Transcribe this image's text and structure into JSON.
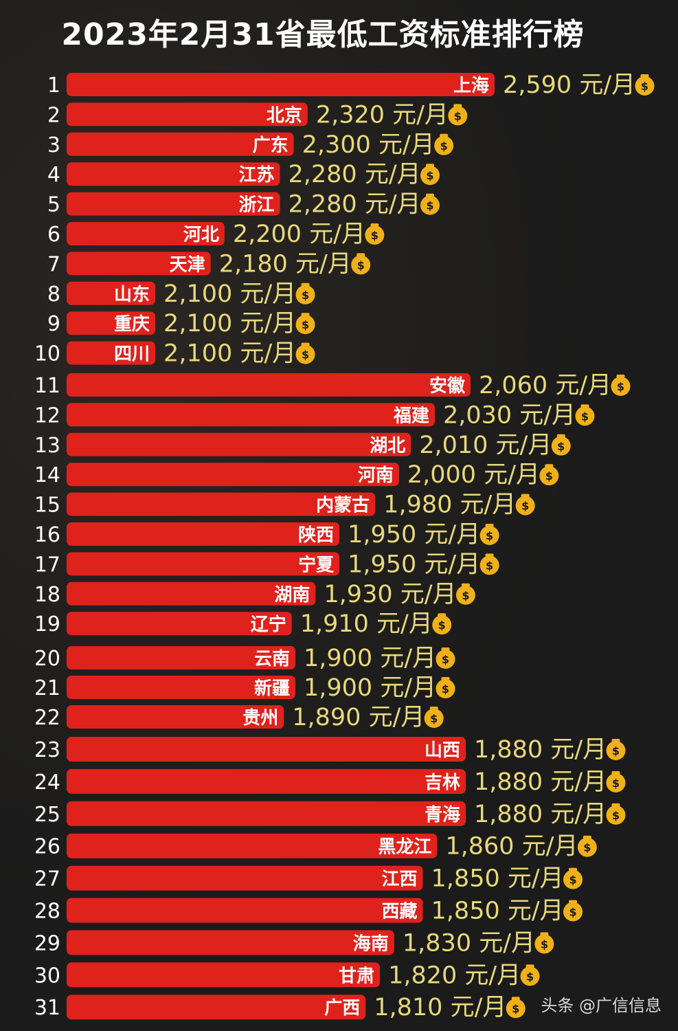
{
  "chart_data": {
    "type": "bar",
    "title": "2023年2月31省最低工资标准排行榜",
    "unit": "元/月",
    "icon": "money-bag-icon",
    "colors": {
      "bar": "#e0221c",
      "value_text": "#e8d87a",
      "rank_text": "#ffffff",
      "coin": "#f0b019"
    },
    "rows": [
      {
        "rank": "1",
        "province": "上海",
        "value": 2590,
        "label": "2,590"
      },
      {
        "rank": "2",
        "province": "北京",
        "value": 2320,
        "label": "2,320"
      },
      {
        "rank": "3",
        "province": "广东",
        "value": 2300,
        "label": "2,300"
      },
      {
        "rank": "4",
        "province": "江苏",
        "value": 2280,
        "label": "2,280"
      },
      {
        "rank": "5",
        "province": "浙江",
        "value": 2280,
        "label": "2,280"
      },
      {
        "rank": "6",
        "province": "河北",
        "value": 2200,
        "label": "2,200"
      },
      {
        "rank": "7",
        "province": "天津",
        "value": 2180,
        "label": "2,180"
      },
      {
        "rank": "8",
        "province": "山东",
        "value": 2100,
        "label": "2,100"
      },
      {
        "rank": "9",
        "province": "重庆",
        "value": 2100,
        "label": "2,100"
      },
      {
        "rank": "10",
        "province": "四川",
        "value": 2100,
        "label": "2,100"
      },
      {
        "rank": "11",
        "province": "安徽",
        "value": 2060,
        "label": "2,060"
      },
      {
        "rank": "12",
        "province": "福建",
        "value": 2030,
        "label": "2,030"
      },
      {
        "rank": "13",
        "province": "湖北",
        "value": 2010,
        "label": "2,010"
      },
      {
        "rank": "14",
        "province": "河南",
        "value": 2000,
        "label": "2,000"
      },
      {
        "rank": "15",
        "province": "内蒙古",
        "value": 1980,
        "label": "1,980"
      },
      {
        "rank": "16",
        "province": "陕西",
        "value": 1950,
        "label": "1,950"
      },
      {
        "rank": "17",
        "province": "宁夏",
        "value": 1950,
        "label": "1,950"
      },
      {
        "rank": "18",
        "province": "湖南",
        "value": 1930,
        "label": "1,930"
      },
      {
        "rank": "19",
        "province": "辽宁",
        "value": 1910,
        "label": "1,910"
      },
      {
        "rank": "20",
        "province": "云南",
        "value": 1900,
        "label": "1,900"
      },
      {
        "rank": "21",
        "province": "新疆",
        "value": 1900,
        "label": "1,900"
      },
      {
        "rank": "22",
        "province": "贵州",
        "value": 1890,
        "label": "1,890"
      },
      {
        "rank": "23",
        "province": "山西",
        "value": 1880,
        "label": "1,880"
      },
      {
        "rank": "24",
        "province": "吉林",
        "value": 1880,
        "label": "1,880"
      },
      {
        "rank": "25",
        "province": "青海",
        "value": 1880,
        "label": "1,880"
      },
      {
        "rank": "26",
        "province": "黑龙江",
        "value": 1860,
        "label": "1,860"
      },
      {
        "rank": "27",
        "province": "江西",
        "value": 1850,
        "label": "1,850"
      },
      {
        "rank": "28",
        "province": "西藏",
        "value": 1850,
        "label": "1,850"
      },
      {
        "rank": "29",
        "province": "海南",
        "value": 1830,
        "label": "1,830"
      },
      {
        "rank": "30",
        "province": "甘肃",
        "value": 1820,
        "label": "1,820"
      },
      {
        "rank": "31",
        "province": "广西",
        "value": 1810,
        "label": "1,810"
      }
    ],
    "segments": [
      {
        "ranks": [
          1,
          10
        ],
        "value_range": [
          1970,
          2590
        ]
      },
      {
        "ranks": [
          11,
          19
        ],
        "value_range": [
          1720,
          2060
        ]
      },
      {
        "ranks": [
          20,
          22
        ],
        "value_range": [
          1700,
          1900
        ]
      },
      {
        "ranks": [
          23,
          31
        ],
        "value_range": [
          1600,
          1880
        ]
      }
    ]
  },
  "watermark": "头条 @广信信息"
}
